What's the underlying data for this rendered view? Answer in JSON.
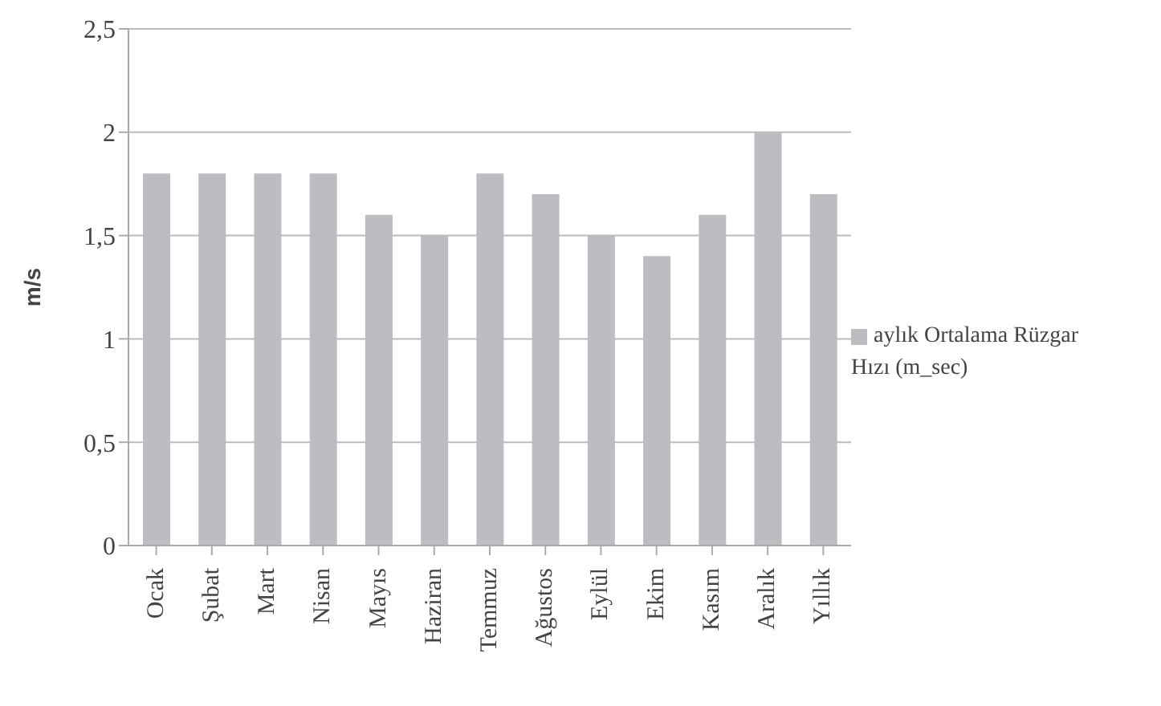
{
  "chart_data": {
    "type": "bar",
    "ylabel": "m/s",
    "categories": [
      "Ocak",
      "Şubat",
      "Mart",
      "Nisan",
      "Mayıs",
      "Haziran",
      "Temmuz",
      "Ağustos",
      "Eylül",
      "Ekim",
      "Kasım",
      "Aralık",
      "Yıllık"
    ],
    "series": [
      {
        "name": "aylık Ortalama Rüzgar Hızı (m_sec)",
        "color": "#bcbdc1",
        "values": [
          1.8,
          1.8,
          1.8,
          1.8,
          1.6,
          1.5,
          1.8,
          1.7,
          1.5,
          1.4,
          1.6,
          2.0,
          1.7
        ]
      }
    ],
    "ylim": [
      0,
      2.5
    ],
    "yticks": [
      {
        "value": 0,
        "label": "0"
      },
      {
        "value": 0.5,
        "label": "0,5"
      },
      {
        "value": 1,
        "label": "1"
      },
      {
        "value": 1.5,
        "label": "1,5"
      },
      {
        "value": 2,
        "label": "2"
      },
      {
        "value": 2.5,
        "label": "2,5"
      }
    ],
    "grid": "y",
    "legend": "right"
  }
}
